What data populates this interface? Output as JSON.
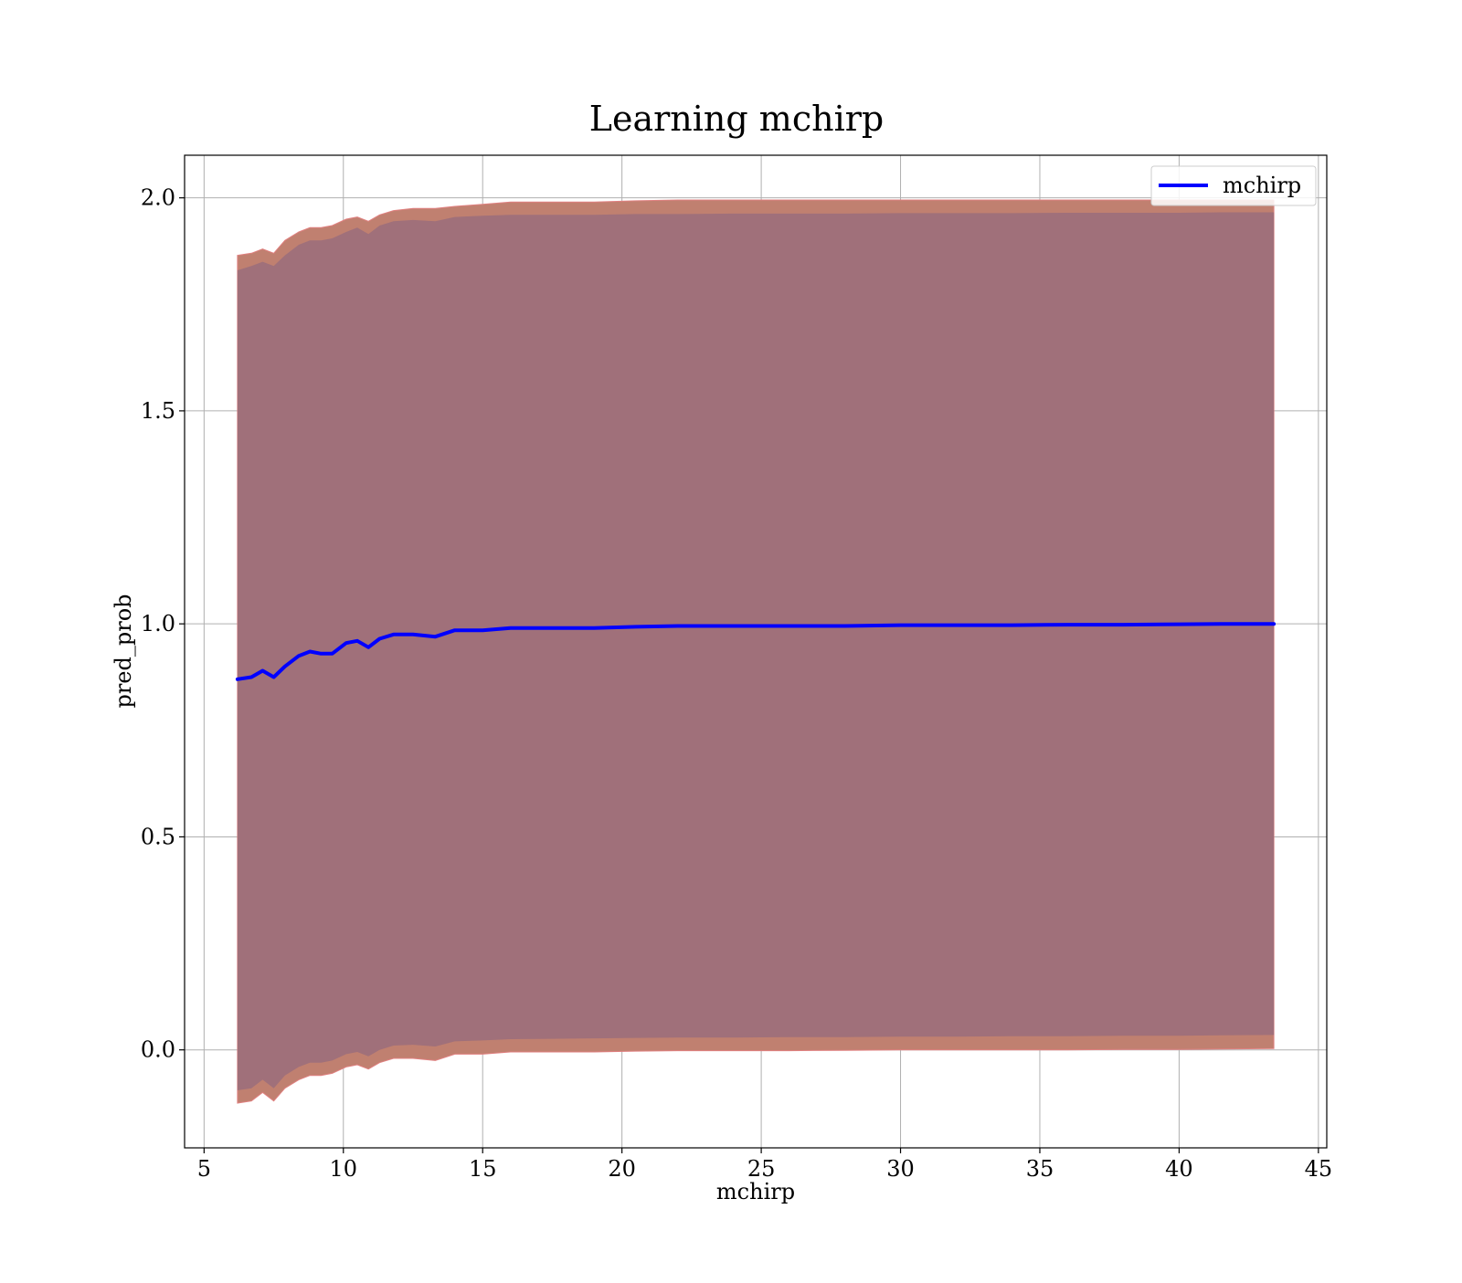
{
  "chart_data": {
    "type": "line",
    "title": "Learning mchirp",
    "xlabel": "mchirp",
    "ylabel": "pred_prob",
    "xlim": [
      4.3,
      45.3
    ],
    "ylim": [
      -0.23,
      2.1
    ],
    "xticks": [
      5,
      10,
      15,
      20,
      25,
      30,
      35,
      40,
      45
    ],
    "yticks": [
      0.0,
      0.5,
      1.0,
      1.5,
      2.0
    ],
    "xtick_labels": [
      "5",
      "10",
      "15",
      "20",
      "25",
      "30",
      "35",
      "40",
      "45"
    ],
    "ytick_labels": [
      "0.0",
      "0.5",
      "1.0",
      "1.5",
      "2.0"
    ],
    "grid": true,
    "legend_position": "top-right",
    "colors": {
      "line": "#0000ff",
      "outer_band": "#c08070",
      "inner_band": "#a0707a",
      "grid": "#b0b0b0"
    },
    "series": [
      {
        "name": "mchirp",
        "x": [
          6.2,
          6.7,
          7.1,
          7.5,
          7.9,
          8.4,
          8.8,
          9.2,
          9.6,
          10.1,
          10.5,
          10.9,
          11.3,
          11.8,
          12.5,
          13.3,
          14.0,
          15.0,
          16.0,
          17.5,
          19.0,
          20.5,
          22.0,
          24.0,
          26.0,
          28.0,
          30.0,
          32.0,
          34.0,
          36.0,
          38.0,
          40.0,
          41.5,
          43.4
        ],
        "y": [
          0.87,
          0.875,
          0.89,
          0.875,
          0.9,
          0.925,
          0.935,
          0.93,
          0.93,
          0.955,
          0.96,
          0.945,
          0.965,
          0.975,
          0.975,
          0.97,
          0.985,
          0.985,
          0.99,
          0.99,
          0.99,
          0.993,
          0.995,
          0.995,
          0.995,
          0.995,
          0.997,
          0.997,
          0.997,
          0.998,
          0.998,
          0.999,
          1.0,
          1.0
        ]
      }
    ],
    "bands": [
      {
        "label": "outer",
        "upper": [
          1.865,
          1.87,
          1.88,
          1.87,
          1.9,
          1.92,
          1.93,
          1.93,
          1.935,
          1.95,
          1.955,
          1.945,
          1.96,
          1.97,
          1.975,
          1.975,
          1.98,
          1.985,
          1.99,
          1.99,
          1.99,
          1.993,
          1.995,
          1.995,
          1.995,
          1.995,
          1.995,
          1.995,
          1.995,
          1.995,
          1.995,
          1.995,
          1.995,
          1.995
        ],
        "lower": [
          -0.125,
          -0.12,
          -0.1,
          -0.12,
          -0.09,
          -0.07,
          -0.06,
          -0.06,
          -0.055,
          -0.04,
          -0.035,
          -0.045,
          -0.03,
          -0.02,
          -0.02,
          -0.025,
          -0.01,
          -0.01,
          -0.005,
          -0.005,
          -0.005,
          -0.003,
          -0.002,
          -0.002,
          -0.002,
          -0.001,
          0.0,
          0.0,
          0.0,
          0.0,
          0.001,
          0.001,
          0.002,
          0.003
        ]
      },
      {
        "label": "inner",
        "upper": [
          1.83,
          1.84,
          1.85,
          1.84,
          1.865,
          1.89,
          1.9,
          1.9,
          1.905,
          1.92,
          1.93,
          1.915,
          1.935,
          1.945,
          1.948,
          1.945,
          1.955,
          1.958,
          1.96,
          1.96,
          1.96,
          1.962,
          1.962,
          1.963,
          1.963,
          1.963,
          1.964,
          1.964,
          1.964,
          1.965,
          1.965,
          1.965,
          1.966,
          1.966
        ],
        "lower": [
          -0.095,
          -0.09,
          -0.07,
          -0.09,
          -0.06,
          -0.04,
          -0.03,
          -0.03,
          -0.025,
          -0.01,
          -0.005,
          -0.015,
          0.0,
          0.01,
          0.012,
          0.008,
          0.02,
          0.022,
          0.025,
          0.026,
          0.027,
          0.028,
          0.029,
          0.029,
          0.03,
          0.03,
          0.031,
          0.031,
          0.032,
          0.032,
          0.033,
          0.033,
          0.034,
          0.035
        ]
      }
    ]
  }
}
